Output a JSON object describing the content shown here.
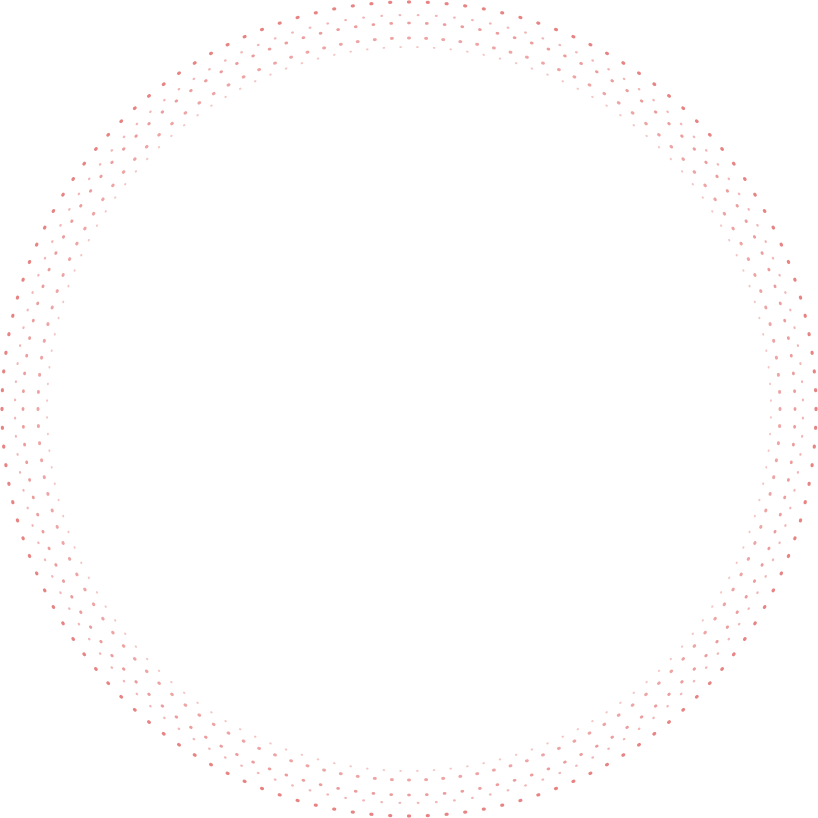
{
  "decoration": {
    "type": "dotted-ring",
    "dot_color": "#e05a5a",
    "background": "#ffffff"
  }
}
